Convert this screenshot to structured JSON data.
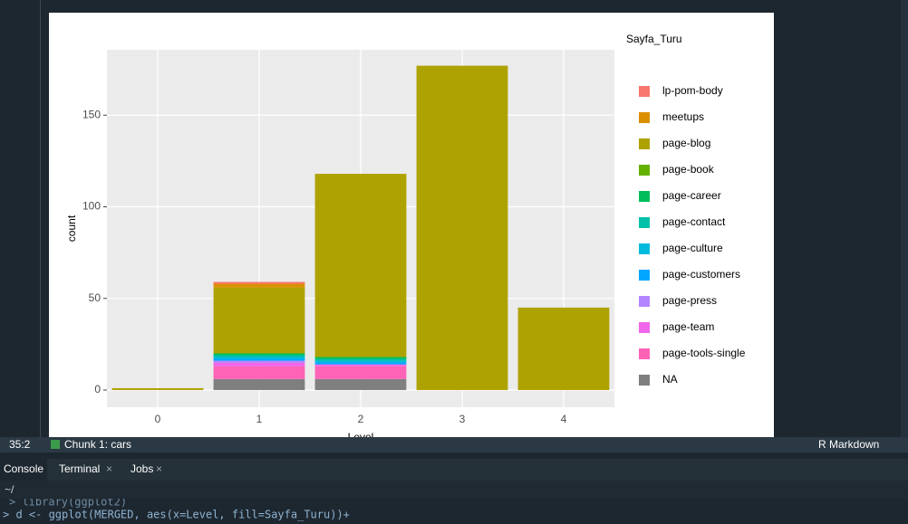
{
  "chart_data": {
    "type": "bar",
    "stacked": true,
    "x_label": "Level",
    "y_label": "count",
    "legend_title": "Sayfa_Turu",
    "categories": [
      "0",
      "1",
      "2",
      "3",
      "4"
    ],
    "series": [
      {
        "name": "lp-pom-body",
        "color": "#F8766D",
        "values": [
          0,
          1,
          0,
          0,
          0
        ]
      },
      {
        "name": "meetups",
        "color": "#DB8E00",
        "values": [
          0,
          2,
          0,
          0,
          0
        ]
      },
      {
        "name": "page-blog",
        "color": "#AEA200",
        "values": [
          1,
          36,
          100,
          177,
          45
        ]
      },
      {
        "name": "page-book",
        "color": "#64B200",
        "values": [
          0,
          0,
          0,
          0,
          0
        ]
      },
      {
        "name": "page-career",
        "color": "#00BD5C",
        "values": [
          0,
          1,
          1,
          0,
          0
        ]
      },
      {
        "name": "page-contact",
        "color": "#00C1A7",
        "values": [
          0,
          1,
          1,
          0,
          0
        ]
      },
      {
        "name": "page-culture",
        "color": "#00BADE",
        "values": [
          0,
          1,
          1,
          0,
          0
        ]
      },
      {
        "name": "page-customers",
        "color": "#00A6FF",
        "values": [
          0,
          1,
          1,
          0,
          0
        ]
      },
      {
        "name": "page-press",
        "color": "#B385FF",
        "values": [
          0,
          1,
          0,
          0,
          0
        ]
      },
      {
        "name": "page-team",
        "color": "#EF67EB",
        "values": [
          0,
          2,
          1,
          0,
          0
        ]
      },
      {
        "name": "page-tools-single",
        "color": "#FF63B6",
        "values": [
          0,
          7,
          7,
          0,
          0
        ]
      },
      {
        "name": "NA",
        "color": "#7F7F7F",
        "values": [
          0,
          6,
          6,
          0,
          0
        ]
      }
    ],
    "ylim": [
      -9.4,
      185.7
    ],
    "yticks": [
      0,
      50,
      100,
      150
    ],
    "grid": true,
    "legend": "right"
  },
  "ui": {
    "status": {
      "position": "35:2",
      "chunk": "Chunk 1: cars",
      "mode": "R Markdown"
    },
    "tabs": [
      "Console",
      "Terminal",
      "Jobs"
    ],
    "path": "~/",
    "console": [
      "> library(ggplot2)",
      "> d <- ggplot(MERGED, aes(x=Level, fill=Sayfa_Turu))+"
    ]
  }
}
